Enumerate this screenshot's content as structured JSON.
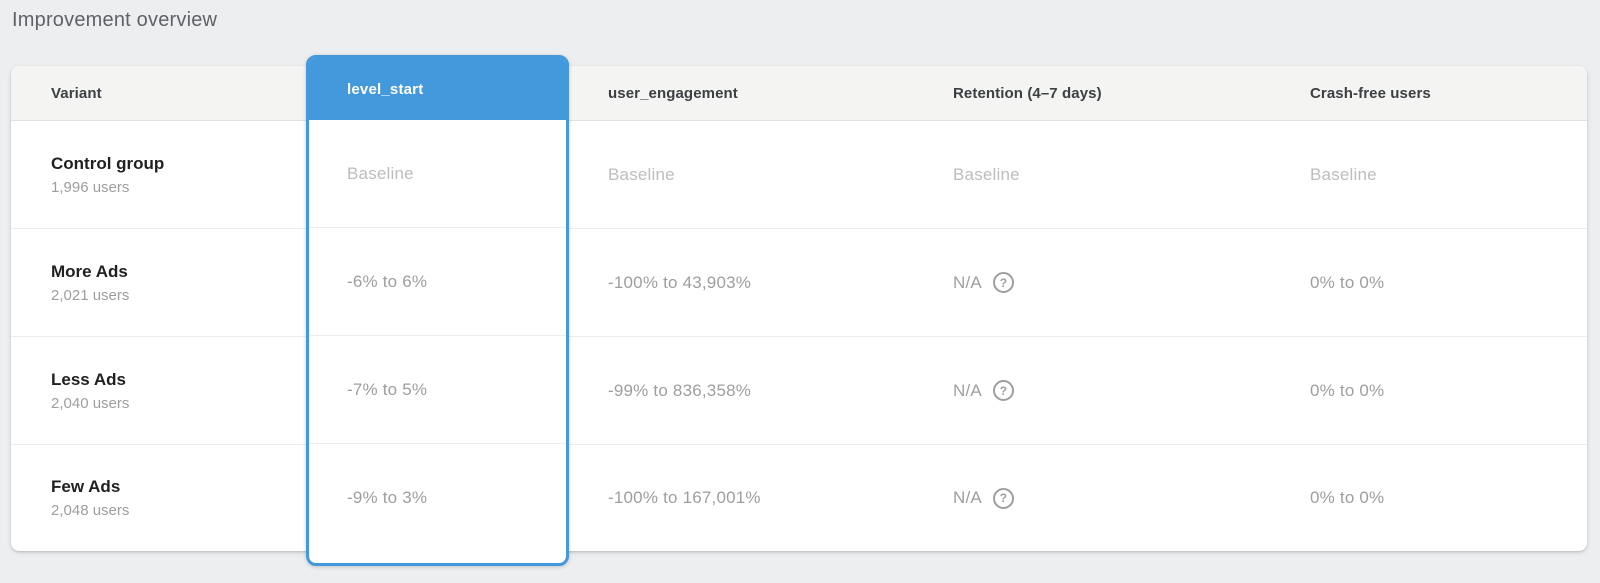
{
  "page": {
    "title": "Improvement overview"
  },
  "colors": {
    "accent_blue": "#4499DC",
    "page_background": "#ECEEF0",
    "header_background": "#F4F4F3",
    "baseline_text": "#BDBDBD",
    "value_text": "#9E9E9E",
    "variant_text": "#212121"
  },
  "table": {
    "help_icon": "?",
    "columns": [
      {
        "id": "variant",
        "label": "Variant",
        "selected": false
      },
      {
        "id": "level_start",
        "label": "level_start",
        "selected": true
      },
      {
        "id": "user_engagement",
        "label": "user_engagement",
        "selected": false
      },
      {
        "id": "retention",
        "label": "Retention (4–7 days)",
        "selected": false
      },
      {
        "id": "crash_free",
        "label": "Crash-free users",
        "selected": false
      }
    ],
    "rows": [
      {
        "variant": "Control group",
        "users": "1,996 users",
        "level_start": "Baseline",
        "user_engagement": "Baseline",
        "retention": "Baseline",
        "crash_free": "Baseline",
        "is_baseline": true
      },
      {
        "variant": "More Ads",
        "users": "2,021 users",
        "level_start": "-6% to 6%",
        "user_engagement": "-100% to 43,903%",
        "retention": "N/A",
        "crash_free": "0% to 0%",
        "is_baseline": false
      },
      {
        "variant": "Less Ads",
        "users": "2,040 users",
        "level_start": "-7% to 5%",
        "user_engagement": "-99% to 836,358%",
        "retention": "N/A",
        "crash_free": "0% to 0%",
        "is_baseline": false
      },
      {
        "variant": "Few Ads",
        "users": "2,048 users",
        "level_start": "-9% to 3%",
        "user_engagement": "-100% to 167,001%",
        "retention": "N/A",
        "crash_free": "0% to 0%",
        "is_baseline": false
      }
    ]
  }
}
